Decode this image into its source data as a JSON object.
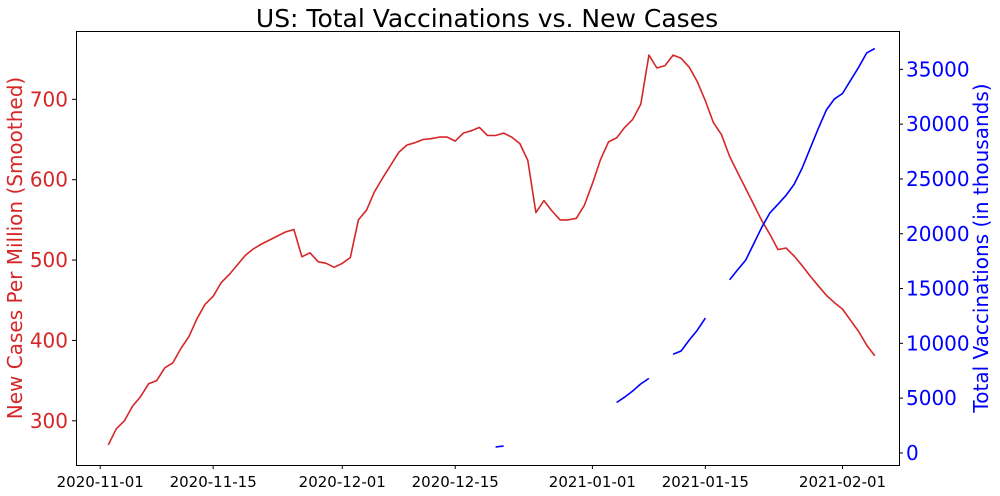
{
  "chart_data": {
    "type": "line",
    "title": "US: Total Vaccinations vs. New Cases",
    "xlabel": "",
    "x_ticks": [
      "2020-11-01",
      "2020-11-15",
      "2020-12-01",
      "2020-12-15",
      "2021-01-01",
      "2021-01-15",
      "2021-02-01"
    ],
    "xlim": [
      "2020-10-29",
      "2021-02-08"
    ],
    "grid": false,
    "left_axis": {
      "label": "New Cases Per Million (Smoothed)",
      "color": "#d62728",
      "ylim": [
        245,
        785
      ],
      "ticks": [
        300,
        400,
        500,
        600,
        700
      ]
    },
    "right_axis": {
      "label": "Total Vaccinations (in thousands)",
      "color": "#0000ff",
      "ylim": [
        -1100,
        38500
      ],
      "ticks": [
        0,
        5000,
        10000,
        15000,
        20000,
        25000,
        30000,
        35000
      ]
    },
    "series": [
      {
        "axis": "left",
        "color": "#d62728",
        "x": [
          "2020-11-02",
          "2020-11-03",
          "2020-11-04",
          "2020-11-05",
          "2020-11-06",
          "2020-11-07",
          "2020-11-08",
          "2020-11-09",
          "2020-11-10",
          "2020-11-11",
          "2020-11-12",
          "2020-11-13",
          "2020-11-14",
          "2020-11-15",
          "2020-11-16",
          "2020-11-17",
          "2020-11-18",
          "2020-11-19",
          "2020-11-20",
          "2020-11-21",
          "2020-11-22",
          "2020-11-23",
          "2020-11-24",
          "2020-11-25",
          "2020-11-26",
          "2020-11-27",
          "2020-11-28",
          "2020-11-29",
          "2020-11-30",
          "2020-12-01",
          "2020-12-02",
          "2020-12-03",
          "2020-12-04",
          "2020-12-05",
          "2020-12-06",
          "2020-12-07",
          "2020-12-08",
          "2020-12-09",
          "2020-12-10",
          "2020-12-11",
          "2020-12-12",
          "2020-12-13",
          "2020-12-14",
          "2020-12-15",
          "2020-12-16",
          "2020-12-17",
          "2020-12-18",
          "2020-12-19",
          "2020-12-20",
          "2020-12-21",
          "2020-12-22",
          "2020-12-23",
          "2020-12-24",
          "2020-12-25",
          "2020-12-26",
          "2020-12-27",
          "2020-12-28",
          "2020-12-29",
          "2020-12-30",
          "2020-12-31",
          "2021-01-01",
          "2021-01-02",
          "2021-01-03",
          "2021-01-04",
          "2021-01-05",
          "2021-01-06",
          "2021-01-07",
          "2021-01-08",
          "2021-01-09",
          "2021-01-10",
          "2021-01-11",
          "2021-01-12",
          "2021-01-13",
          "2021-01-14",
          "2021-01-15",
          "2021-01-16",
          "2021-01-17",
          "2021-01-18",
          "2021-01-19",
          "2021-01-20",
          "2021-01-21",
          "2021-01-22",
          "2021-01-23",
          "2021-01-24",
          "2021-01-25",
          "2021-01-26",
          "2021-01-27",
          "2021-01-28",
          "2021-01-29",
          "2021-01-30",
          "2021-01-31",
          "2021-02-01",
          "2021-02-02",
          "2021-02-03",
          "2021-02-04",
          "2021-02-05"
        ],
        "values": [
          270,
          290,
          300,
          318,
          330,
          346,
          350,
          366,
          372,
          390,
          405,
          427,
          445,
          455,
          472,
          482,
          494,
          506,
          514,
          520,
          525,
          530,
          535,
          538,
          504,
          509,
          498,
          496,
          491,
          496,
          503,
          550,
          562,
          585,
          602,
          618,
          634,
          643,
          646,
          650,
          651,
          653,
          653,
          648,
          658,
          661,
          665,
          655,
          655,
          658,
          653,
          645,
          624,
          559,
          574,
          561,
          550,
          550,
          552,
          568,
          595,
          625,
          647,
          652,
          665,
          675,
          694,
          755,
          739,
          742,
          755,
          751,
          740,
          722,
          698,
          671,
          656,
          629,
          609,
          589,
          569,
          549,
          532,
          513,
          515,
          505,
          493,
          480,
          468,
          456,
          447,
          439,
          425,
          411,
          394,
          381
        ]
      },
      {
        "axis": "right",
        "color": "#0000ff",
        "segments": [
          {
            "x": [
              "2020-12-20",
              "2020-12-21"
            ],
            "values": [
              550,
              620
            ]
          },
          {
            "x": [
              "2021-01-04",
              "2021-01-05",
              "2021-01-06",
              "2021-01-07",
              "2021-01-08"
            ],
            "values": [
              4600,
              5100,
              5650,
              6300,
              6800
            ]
          },
          {
            "x": [
              "2021-01-11",
              "2021-01-12",
              "2021-01-13",
              "2021-01-14",
              "2021-01-15"
            ],
            "values": [
              9000,
              9300,
              10300,
              11200,
              12300
            ]
          },
          {
            "x": [
              "2021-01-18",
              "2021-01-19",
              "2021-01-20",
              "2021-01-21",
              "2021-01-22",
              "2021-01-23",
              "2021-01-24",
              "2021-01-25",
              "2021-01-26",
              "2021-01-27",
              "2021-01-28",
              "2021-01-29",
              "2021-01-30",
              "2021-01-31",
              "2021-02-01",
              "2021-02-02",
              "2021-02-03",
              "2021-02-04",
              "2021-02-05"
            ],
            "values": [
              15800,
              16700,
              17600,
              19100,
              20600,
              21900,
              22700,
              23500,
              24500,
              26000,
              27800,
              29600,
              31300,
              32300,
              32800,
              34000,
              35200,
              36500,
              36900
            ]
          }
        ]
      }
    ]
  }
}
